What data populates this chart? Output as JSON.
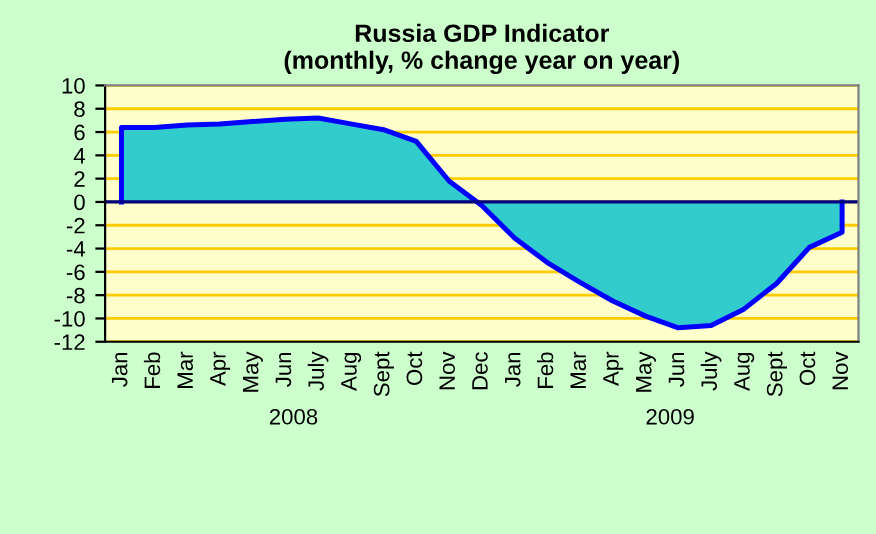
{
  "chart_data": {
    "type": "area",
    "title": "Russia GDP Indicator\n(monthly, % change year on year)",
    "categories": [
      "Jan",
      "Feb",
      "Mar",
      "Apr",
      "May",
      "Jun",
      "July",
      "Aug",
      "Sept",
      "Oct",
      "Nov",
      "Dec",
      "Jan",
      "Feb",
      "Mar",
      "Apr",
      "May",
      "Jun",
      "July",
      "Aug",
      "Sept",
      "Oct",
      "Nov"
    ],
    "series": [
      {
        "color": "#33cccc",
        "values": [
          6.4,
          6.4,
          6.6,
          6.7,
          6.9,
          7.1,
          7.2,
          6.7,
          6.2,
          5.2,
          1.8,
          -0.3,
          -3.1,
          -5.2,
          -6.9,
          -8.5,
          -9.8,
          -10.8,
          -10.6,
          -9.2,
          -7.0,
          -3.9,
          -2.6
        ]
      }
    ],
    "ylim": [
      -12,
      10
    ],
    "yticks": [
      -12,
      -10,
      -8,
      -6,
      -4,
      -2,
      0,
      2,
      4,
      6,
      8,
      10
    ],
    "grid": "y",
    "ref_lines": [
      {
        "axis": "y",
        "value": 0,
        "color": "#000080"
      }
    ],
    "annotations": [
      "2008",
      "2009"
    ]
  }
}
